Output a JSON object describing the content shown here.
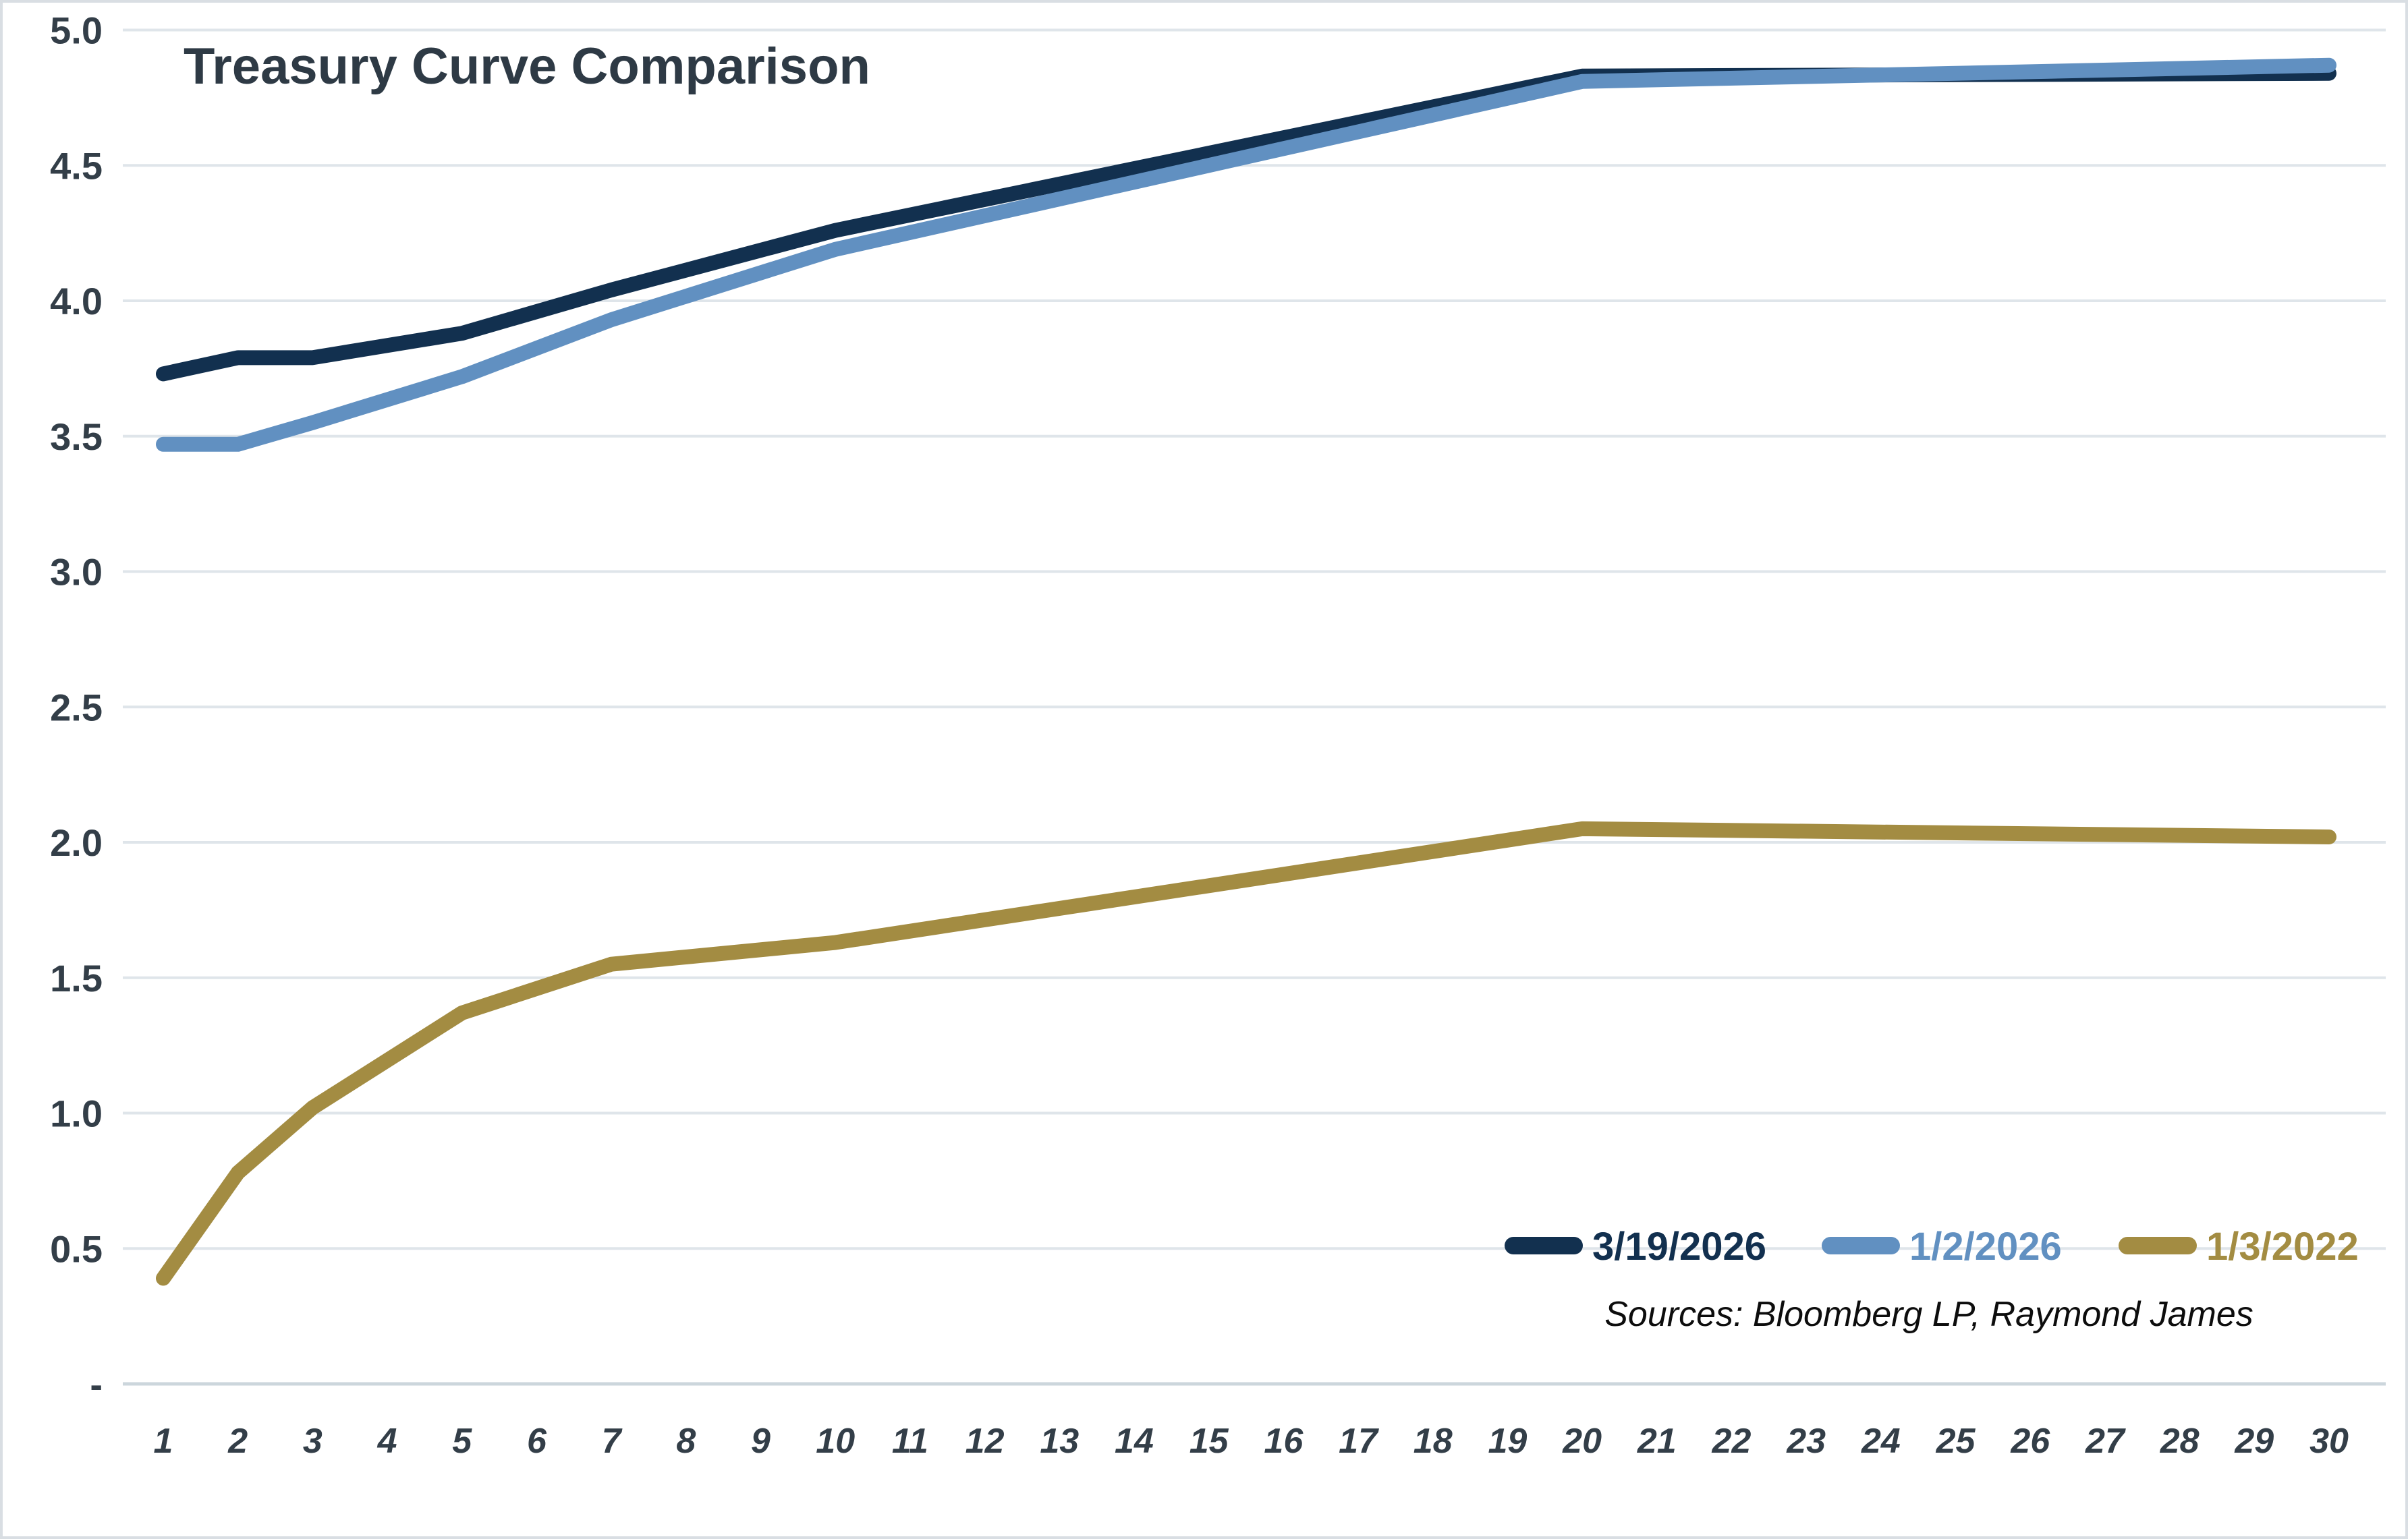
{
  "title": "Treasury Curve Comparison",
  "sources": "Sources: Bloomberg LP, Raymond James",
  "colors": {
    "series_navy": "#12304f",
    "series_blue": "#6190c1",
    "series_gold": "#a38c42",
    "gridline": "#dfe5ea",
    "zero_axis": "#ccd6dc",
    "axis_text": "#333e48",
    "title_text": "#2e3a45",
    "frame_border": "#d9dee3",
    "background": "#ffffff"
  },
  "legend": {
    "position": "inside-bottom-right",
    "entries": [
      "3/19/2026",
      "1/2/2026",
      "1/3/2022"
    ]
  },
  "chart_data": {
    "type": "line",
    "title": "Treasury Curve Comparison",
    "xlabel": "",
    "ylabel": "",
    "xlim": [
      1,
      30
    ],
    "ylim": [
      0,
      5.0
    ],
    "grid": true,
    "legend_position": "inside bottom-right",
    "x_ticks": [
      "1",
      "2",
      "3",
      "4",
      "5",
      "6",
      "7",
      "8",
      "9",
      "10",
      "11",
      "12",
      "13",
      "14",
      "15",
      "16",
      "17",
      "18",
      "19",
      "20",
      "21",
      "22",
      "23",
      "24",
      "25",
      "26",
      "27",
      "28",
      "29",
      "30"
    ],
    "y_ticks": [
      {
        "value": 5.0,
        "label": "5.0"
      },
      {
        "value": 4.5,
        "label": "4.5"
      },
      {
        "value": 4.0,
        "label": "4.0"
      },
      {
        "value": 3.5,
        "label": "3.5"
      },
      {
        "value": 3.0,
        "label": "3.0"
      },
      {
        "value": 2.5,
        "label": "2.5"
      },
      {
        "value": 2.0,
        "label": "2.0"
      },
      {
        "value": 1.5,
        "label": "1.5"
      },
      {
        "value": 1.0,
        "label": "1.0"
      },
      {
        "value": 0.5,
        "label": "0.5"
      },
      {
        "value": 0.0,
        "label": "-"
      }
    ],
    "x_axis_note": "maturity in years; lines are piecewise linear between standard maturities",
    "series": [
      {
        "name": "3/19/2026",
        "color_key": "series_navy",
        "color": "#12304f",
        "points": [
          [
            1,
            3.73
          ],
          [
            2,
            3.79
          ],
          [
            3,
            3.79
          ],
          [
            5,
            3.88
          ],
          [
            7,
            4.04
          ],
          [
            10,
            4.26
          ],
          [
            20,
            4.83
          ],
          [
            30,
            4.84
          ]
        ]
      },
      {
        "name": "1/2/2026",
        "color_key": "series_blue",
        "color": "#6190c1",
        "points": [
          [
            1,
            3.47
          ],
          [
            2,
            3.47
          ],
          [
            3,
            3.55
          ],
          [
            5,
            3.72
          ],
          [
            7,
            3.93
          ],
          [
            10,
            4.19
          ],
          [
            20,
            4.81
          ],
          [
            30,
            4.87
          ]
        ]
      },
      {
        "name": "1/3/2022",
        "color_key": "series_gold",
        "color": "#a38c42",
        "points": [
          [
            1,
            0.39
          ],
          [
            2,
            0.78
          ],
          [
            3,
            1.02
          ],
          [
            5,
            1.37
          ],
          [
            7,
            1.55
          ],
          [
            10,
            1.63
          ],
          [
            20,
            2.05
          ],
          [
            30,
            2.02
          ]
        ]
      }
    ]
  }
}
